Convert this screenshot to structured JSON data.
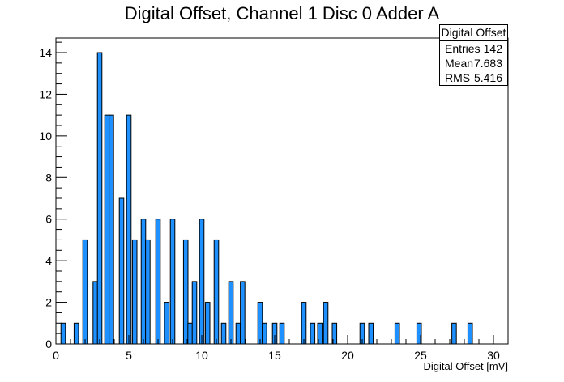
{
  "chart_data": {
    "type": "bar",
    "title": "Digital Offset, Channel 1 Disc 0 Adder A",
    "xlabel": "Digital Offset [mV]",
    "ylabel": "",
    "xlim": [
      0,
      31
    ],
    "ylim": [
      0,
      14.7
    ],
    "bin_width": 0.31,
    "bar_color": "#1e90ff",
    "x_ticks": [
      0,
      5,
      10,
      15,
      20,
      25,
      30
    ],
    "y_ticks": [
      0,
      2,
      4,
      6,
      8,
      10,
      12,
      14
    ],
    "bins": [
      {
        "x": 0.5,
        "value": 1
      },
      {
        "x": 1.4,
        "value": 1
      },
      {
        "x": 2.0,
        "value": 5
      },
      {
        "x": 2.7,
        "value": 3
      },
      {
        "x": 3.0,
        "value": 14
      },
      {
        "x": 3.5,
        "value": 11
      },
      {
        "x": 3.8,
        "value": 11
      },
      {
        "x": 4.5,
        "value": 7
      },
      {
        "x": 5.0,
        "value": 11
      },
      {
        "x": 5.4,
        "value": 5
      },
      {
        "x": 6.0,
        "value": 6
      },
      {
        "x": 6.3,
        "value": 5
      },
      {
        "x": 7.0,
        "value": 6
      },
      {
        "x": 7.6,
        "value": 2
      },
      {
        "x": 8.0,
        "value": 6
      },
      {
        "x": 8.9,
        "value": 5
      },
      {
        "x": 9.2,
        "value": 1
      },
      {
        "x": 9.5,
        "value": 3
      },
      {
        "x": 10.0,
        "value": 6
      },
      {
        "x": 10.4,
        "value": 2
      },
      {
        "x": 11.0,
        "value": 5
      },
      {
        "x": 11.5,
        "value": 1
      },
      {
        "x": 12.0,
        "value": 3
      },
      {
        "x": 12.5,
        "value": 1
      },
      {
        "x": 12.8,
        "value": 3
      },
      {
        "x": 14.0,
        "value": 2
      },
      {
        "x": 14.3,
        "value": 1
      },
      {
        "x": 15.0,
        "value": 1
      },
      {
        "x": 15.5,
        "value": 1
      },
      {
        "x": 17.0,
        "value": 2
      },
      {
        "x": 17.6,
        "value": 1
      },
      {
        "x": 18.1,
        "value": 1
      },
      {
        "x": 18.5,
        "value": 2
      },
      {
        "x": 19.1,
        "value": 1
      },
      {
        "x": 21.0,
        "value": 1
      },
      {
        "x": 21.6,
        "value": 1
      },
      {
        "x": 23.4,
        "value": 1
      },
      {
        "x": 24.9,
        "value": 1
      },
      {
        "x": 27.3,
        "value": 1
      },
      {
        "x": 28.4,
        "value": 1
      }
    ]
  },
  "stats": {
    "title": "Digital Offset",
    "entries_label": "Entries",
    "entries_value": "142",
    "mean_label": "Mean",
    "mean_value": "7.683",
    "rms_label": "RMS",
    "rms_value": "5.416"
  }
}
